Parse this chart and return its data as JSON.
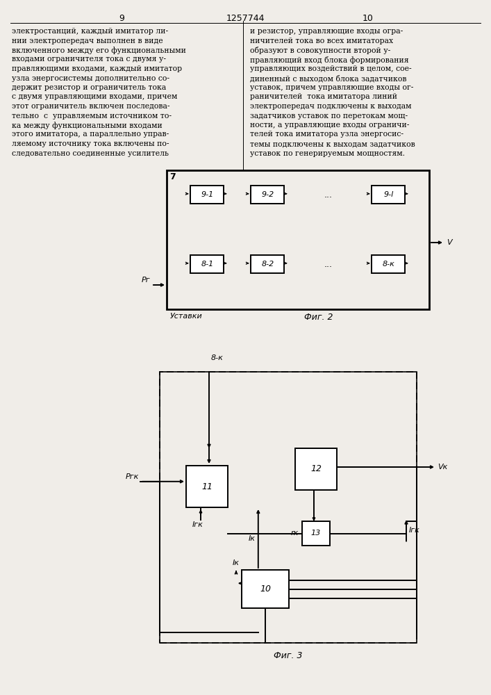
{
  "bg_color": "#f0ede8",
  "text_col1": [
    "электростанций, каждый имитатор ли-",
    "нии электропередач выполнен в виде",
    "включенного между его функциональными",
    "входами ограничителя тока с двумя у-",
    "правляющими входами, каждый имитатор",
    "узла энергосистемы дополнительно со-",
    "держит резистор и ограничитель тока",
    "с двумя управляющими входами, причем",
    "этот ограничитель включен последова-",
    "тельно  с  управляемым источником то-",
    "ка между функциональными входами",
    "этого имитатора, а параллельно управ-",
    "ляемому источнику тока включены по-",
    "следовательно соединенные усилитель"
  ],
  "text_col2": [
    "и резистор, управляющие входы огра-",
    "ничителей тока во всех имитаторах",
    "образуют в совокупности второй у-",
    "правляющий вход блока формирования",
    "управляющих воздействий в целом, сое-",
    "диненный с выходом блока задатчиков",
    "уставок, причем управляющие входы ог-",
    "раничителей  тока имитатора линий",
    "электропередач подключены к выходам",
    "задатчиков уставок по перетокам мощ-",
    "ности, а управляющие входы ограничи-",
    "телей тока имитатора узла энергосис-",
    "темы подключены к выходам задатчиков",
    "уставок по генерируемым мощностям."
  ],
  "page_left": "9",
  "page_center": "1257744",
  "page_right": "10",
  "fig2_label": "7",
  "fig2_caption": "Фиг. 2",
  "fig2_ustavki": "Уставки",
  "fig2_pr": "Рг",
  "fig2_v": "V",
  "blocks9": [
    "9-1",
    "9-2",
    "...",
    "9-l"
  ],
  "blocks8": [
    "8-1",
    "8-2",
    "...",
    "8-к"
  ],
  "fig3_caption": "Фиг. 3",
  "fig3_8k": "8-к",
  "fig3_prk": "Ргк",
  "fig3_vk": "Vк",
  "fig3_ik": "Iк",
  "fig3_igk_left": "Iгк",
  "fig3_igk_right": "Iгк",
  "fig3_rk": "rк",
  "fig3_blocks": [
    "10",
    "11",
    "12",
    "13"
  ]
}
